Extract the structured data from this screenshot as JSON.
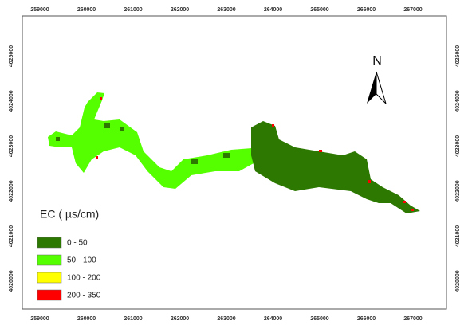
{
  "map": {
    "x_labels": [
      "259000",
      "260000",
      "261000",
      "262000",
      "263000",
      "264000",
      "265000",
      "266000",
      "267000"
    ],
    "y_labels": [
      "4020000",
      "4021000",
      "4022000",
      "4023000",
      "4024000",
      "4025000"
    ],
    "north": "N",
    "legend": {
      "title": "EC ( µs/cm)",
      "items": [
        {
          "label": "0 - 50",
          "color": "#2c7800"
        },
        {
          "label": "50 - 100",
          "color": "#55ff00"
        },
        {
          "label": "100 - 200",
          "color": "#ffff00"
        },
        {
          "label": "200 - 350",
          "color": "#ff0000"
        }
      ]
    }
  }
}
